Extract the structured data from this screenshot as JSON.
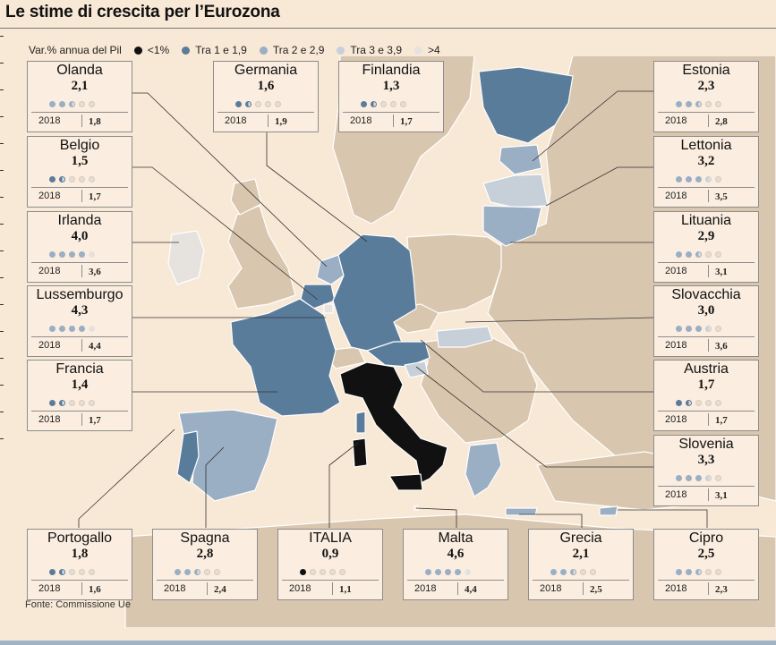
{
  "title": "Le stime di crescita per l’Eurozona",
  "legend": {
    "label": "Var.% annua del Pil",
    "items": [
      {
        "label": "<1%",
        "color": "#111111"
      },
      {
        "label": "Tra 1 e 1,9",
        "color": "#5a7c9b"
      },
      {
        "label": "Tra 2 e 2,9",
        "color": "#9aaec4"
      },
      {
        "label": "Tra 3 e 3,9",
        "color": "#c7cfd9"
      },
      {
        "label": ">4",
        "color": "#e6e3df"
      }
    ]
  },
  "year_label": "2018",
  "cards": [
    {
      "name": "Olanda",
      "value": "2,1",
      "prev": "1,8",
      "cls": 2
    },
    {
      "name": "Germania",
      "value": "1,6",
      "prev": "1,9",
      "cls": 1
    },
    {
      "name": "Finlandia",
      "value": "1,3",
      "prev": "1,7",
      "cls": 1
    },
    {
      "name": "Estonia",
      "value": "2,3",
      "prev": "2,8",
      "cls": 2
    },
    {
      "name": "Belgio",
      "value": "1,5",
      "prev": "1,7",
      "cls": 1
    },
    {
      "name": "Lettonia",
      "value": "3,2",
      "prev": "3,5",
      "cls": 3
    },
    {
      "name": "Irlanda",
      "value": "4,0",
      "prev": "3,6",
      "cls": 4
    },
    {
      "name": "Lituania",
      "value": "2,9",
      "prev": "3,1",
      "cls": 2
    },
    {
      "name": "Lussemburgo",
      "value": "4,3",
      "prev": "4,4",
      "cls": 4
    },
    {
      "name": "Slovacchia",
      "value": "3,0",
      "prev": "3,6",
      "cls": 3
    },
    {
      "name": "Francia",
      "value": "1,4",
      "prev": "1,7",
      "cls": 1
    },
    {
      "name": "Austria",
      "value": "1,7",
      "prev": "1,7",
      "cls": 1
    },
    {
      "name": "Slovenia",
      "value": "3,3",
      "prev": "3,1",
      "cls": 3
    },
    {
      "name": "Portogallo",
      "value": "1,8",
      "prev": "1,6",
      "cls": 1
    },
    {
      "name": "Spagna",
      "value": "2,8",
      "prev": "2,4",
      "cls": 2
    },
    {
      "name": "ITALIA",
      "value": "0,9",
      "prev": "1,1",
      "cls": 0
    },
    {
      "name": "Malta",
      "value": "4,6",
      "prev": "4,4",
      "cls": 4
    },
    {
      "name": "Grecia",
      "value": "2,1",
      "prev": "2,5",
      "cls": 2
    },
    {
      "name": "Cipro",
      "value": "2,5",
      "prev": "2,3",
      "cls": 2
    }
  ],
  "source": "Fonte: Commissione Ue",
  "colors": {
    "sea": "#f8e8d6",
    "land_non_euro": "#d9c6ae",
    "border": "#ffffff"
  }
}
